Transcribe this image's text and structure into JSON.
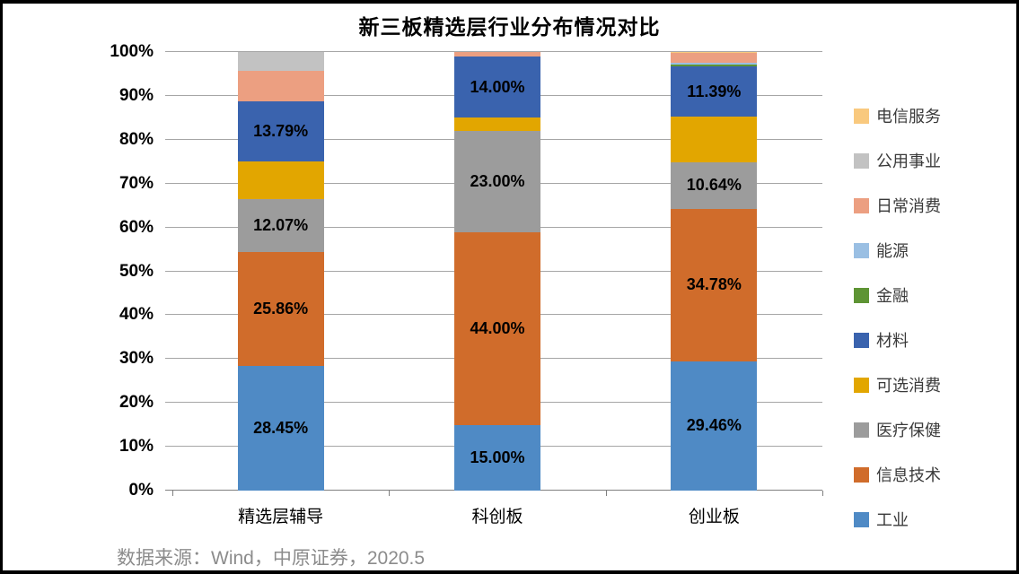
{
  "chart_data": {
    "type": "bar",
    "variant": "stacked-percent",
    "title": "新三板精选层行业分布情况对比",
    "source": "数据来源：Wind，中原证券，2020.5",
    "categories": [
      "精选层辅导",
      "科创板",
      "创业板"
    ],
    "xlabel": "",
    "ylabel": "",
    "ylim": [
      0,
      100
    ],
    "y_ticks": [
      "0%",
      "10%",
      "20%",
      "30%",
      "40%",
      "50%",
      "60%",
      "70%",
      "80%",
      "90%",
      "100%"
    ],
    "grid": true,
    "legend_position": "right",
    "series": [
      {
        "name": "工业",
        "color": "#4F8AC5",
        "values": [
          28.45,
          15.0,
          29.46
        ],
        "labels": [
          "28.45%",
          "15.00%",
          "29.46%"
        ]
      },
      {
        "name": "信息技术",
        "color": "#D06C2B",
        "values": [
          25.86,
          44.0,
          34.78
        ],
        "labels": [
          "25.86%",
          "44.00%",
          "34.78%"
        ]
      },
      {
        "name": "医疗保健",
        "color": "#9C9C9C",
        "values": [
          12.07,
          23.0,
          10.64
        ],
        "labels": [
          "12.07%",
          "23.00%",
          "10.64%"
        ]
      },
      {
        "name": "可选消费",
        "color": "#E2A600",
        "values": [
          8.62,
          3.0,
          10.42
        ],
        "labels": [
          null,
          null,
          null
        ]
      },
      {
        "name": "材料",
        "color": "#3A63AE",
        "values": [
          13.79,
          14.0,
          11.39
        ],
        "labels": [
          "13.79%",
          "14.00%",
          "11.39%"
        ]
      },
      {
        "name": "金融",
        "color": "#5E9434",
        "values": [
          0,
          0,
          0.37
        ],
        "labels": [
          null,
          null,
          null
        ]
      },
      {
        "name": "能源",
        "color": "#9ABFE3",
        "values": [
          0,
          0,
          0.5
        ],
        "labels": [
          null,
          null,
          null
        ]
      },
      {
        "name": "日常消费",
        "color": "#EC9F81",
        "values": [
          6.9,
          1.0,
          2.32
        ],
        "labels": [
          null,
          null,
          null
        ]
      },
      {
        "name": "公用事业",
        "color": "#C2C2C2",
        "values": [
          4.31,
          0,
          0
        ],
        "labels": [
          null,
          null,
          null
        ]
      },
      {
        "name": "电信服务",
        "color": "#F9C97E",
        "values": [
          0,
          0,
          0.12
        ],
        "labels": [
          null,
          null,
          null
        ]
      }
    ]
  }
}
